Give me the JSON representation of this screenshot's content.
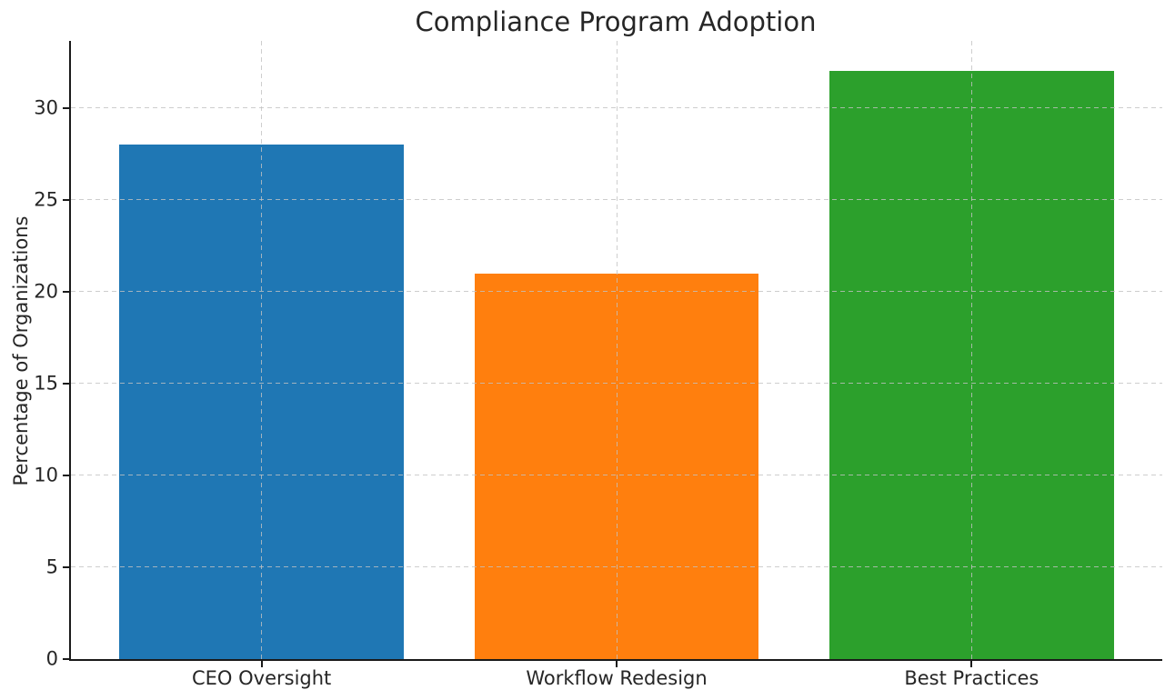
{
  "chart_data": {
    "type": "bar",
    "title": "Compliance Program Adoption",
    "xlabel": "",
    "ylabel": "Percentage of Organizations",
    "categories": [
      "CEO Oversight",
      "Workflow Redesign",
      "Best Practices"
    ],
    "values": [
      28,
      21,
      32
    ],
    "bar_colors": [
      "#1f77b4",
      "#ff7f0e",
      "#2ca02c"
    ],
    "yticks": [
      0,
      5,
      10,
      15,
      20,
      25,
      30
    ],
    "ylim": [
      0,
      33.65
    ],
    "xlim": [
      -0.537,
      2.537
    ],
    "bar_width": 0.8,
    "grid": "dashed-horizontal-and-vertical, drawn above bars",
    "grid_color": "#c2c2c2",
    "legend_position": "none",
    "background_color": "#ffffff",
    "text_color": "#262626",
    "spine_color": "#1a1a1a"
  }
}
